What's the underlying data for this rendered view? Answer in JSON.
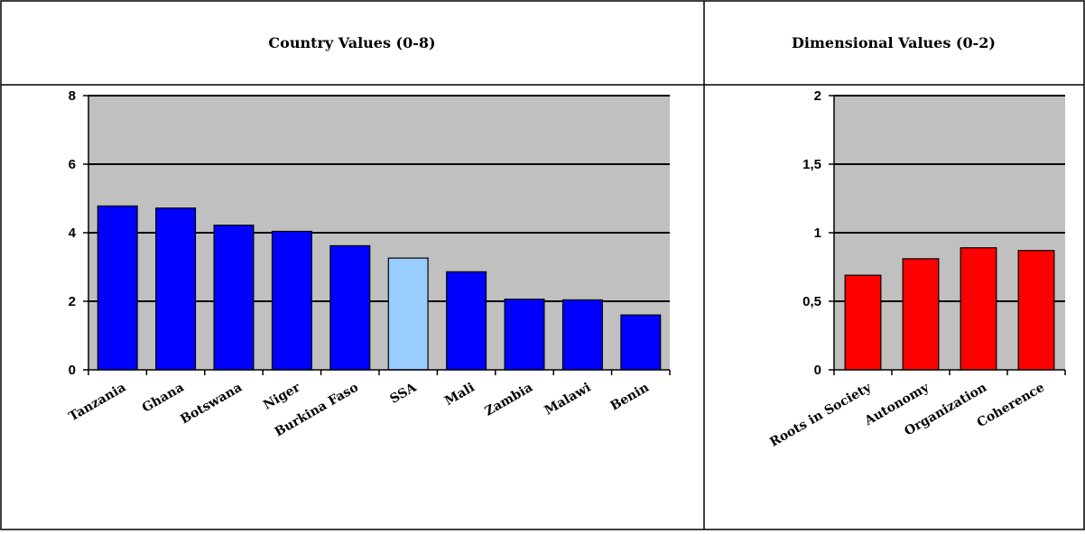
{
  "panels": [
    {
      "header": "Country Values (0-8)",
      "chart_data": {
        "type": "bar",
        "title": "",
        "xlabel": "",
        "ylabel": "",
        "categories": [
          "Tanzania",
          "Ghana",
          "Botswana",
          "Niger",
          "Burkina Faso",
          "SSA",
          "Mali",
          "Zambia",
          "Malawi",
          "Benin"
        ],
        "values": [
          4.78,
          4.72,
          4.22,
          4.04,
          3.62,
          3.26,
          2.86,
          2.06,
          2.04,
          1.6
        ],
        "bar_colors": [
          "#0000ff",
          "#0000ff",
          "#0000ff",
          "#0000ff",
          "#0000ff",
          "#99ccff",
          "#0000ff",
          "#0000ff",
          "#0000ff",
          "#0000ff"
        ],
        "ylim": [
          0,
          8
        ],
        "yticks": [
          "0",
          "2",
          "4",
          "6",
          "8"
        ],
        "ytick_values": [
          0,
          2,
          4,
          6,
          8
        ],
        "plot_background": "#c0c0c0",
        "grid": true,
        "legend": "none"
      }
    },
    {
      "header": "Dimensional Values (0-2)",
      "chart_data": {
        "type": "bar",
        "title": "",
        "xlabel": "",
        "ylabel": "",
        "categories": [
          "Roots in Society",
          "Autonomy",
          "Organization",
          "Coherence"
        ],
        "values": [
          0.69,
          0.81,
          0.89,
          0.87
        ],
        "bar_colors": [
          "#ff0000",
          "#ff0000",
          "#ff0000",
          "#ff0000"
        ],
        "ylim": [
          0,
          2
        ],
        "yticks": [
          "0",
          "0,5",
          "1",
          "1,5",
          "2"
        ],
        "ytick_values": [
          0,
          0.5,
          1,
          1.5,
          2
        ],
        "plot_background": "#c0c0c0",
        "grid": true,
        "legend": "none"
      }
    }
  ]
}
